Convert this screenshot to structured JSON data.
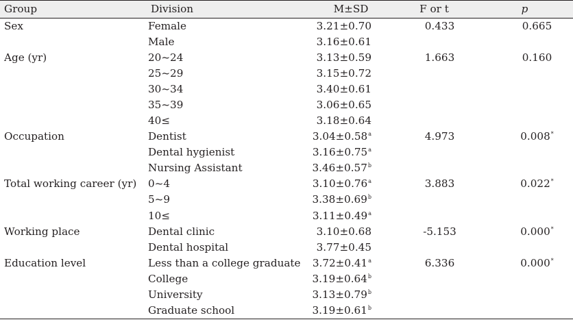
{
  "headers": {
    "group": "Group",
    "division": "Division",
    "msd": "M±SD",
    "ft": "F or t",
    "p": "p"
  },
  "rows": [
    {
      "group": "Sex",
      "division": "Female",
      "msd": "3.21±0.70",
      "sup": "",
      "ft": "0.433",
      "p": "0.665",
      "psup": ""
    },
    {
      "group": "",
      "division": "Male",
      "msd": "3.16±0.61",
      "sup": "",
      "ft": "",
      "p": "",
      "psup": ""
    },
    {
      "group": "Age (yr)",
      "division": "20~24",
      "msd": "3.13±0.59",
      "sup": "",
      "ft": "1.663",
      "p": "0.160",
      "psup": ""
    },
    {
      "group": "",
      "division": "25~29",
      "msd": "3.15±0.72",
      "sup": "",
      "ft": "",
      "p": "",
      "psup": ""
    },
    {
      "group": "",
      "division": "30~34",
      "msd": "3.40±0.61",
      "sup": "",
      "ft": "",
      "p": "",
      "psup": ""
    },
    {
      "group": "",
      "division": "35~39",
      "msd": "3.06±0.65",
      "sup": "",
      "ft": "",
      "p": "",
      "psup": ""
    },
    {
      "group": "",
      "division": "40≤",
      "msd": "3.18±0.64",
      "sup": "",
      "ft": "",
      "p": "",
      "psup": ""
    },
    {
      "group": "Occupation",
      "division": "Dentist",
      "msd": "3.04±0.58",
      "sup": "a",
      "ft": "4.973",
      "p": "0.008",
      "psup": "*"
    },
    {
      "group": "",
      "division": "Dental hygienist",
      "msd": "3.16±0.75",
      "sup": "a",
      "ft": "",
      "p": "",
      "psup": ""
    },
    {
      "group": "",
      "division": "Nursing Assistant",
      "msd": "3.46±0.57",
      "sup": "b",
      "ft": "",
      "p": "",
      "psup": ""
    },
    {
      "group": "Total working career (yr)",
      "division": "0~4",
      "msd": "3.10±0.76",
      "sup": "a",
      "ft": "3.883",
      "p": "0.022",
      "psup": "*"
    },
    {
      "group": "",
      "division": "5~9",
      "msd": "3.38±0.69",
      "sup": "b",
      "ft": "",
      "p": "",
      "psup": ""
    },
    {
      "group": "",
      "division": "10≤",
      "msd": "3.11±0.49",
      "sup": "a",
      "ft": "",
      "p": "",
      "psup": ""
    },
    {
      "group": "Working place",
      "division": "Dental clinic",
      "msd": "3.10±0.68",
      "sup": "",
      "ft": "-5.153",
      "p": "0.000",
      "psup": "*"
    },
    {
      "group": "",
      "division": "Dental hospital",
      "msd": "3.77±0.45",
      "sup": "",
      "ft": "",
      "p": "",
      "psup": ""
    },
    {
      "group": "Education level",
      "division": "Less than a college graduate",
      "msd": "3.72±0.41",
      "sup": "a",
      "ft": "6.336",
      "p": "0.000",
      "psup": "*"
    },
    {
      "group": "",
      "division": "College",
      "msd": "3.19±0.64",
      "sup": "b",
      "ft": "",
      "p": "",
      "psup": ""
    },
    {
      "group": "",
      "division": "University",
      "msd": "3.13±0.79",
      "sup": "b",
      "ft": "",
      "p": "",
      "psup": ""
    },
    {
      "group": "",
      "division": "Graduate school",
      "msd": "3.19±0.61",
      "sup": "b",
      "ft": "",
      "p": "",
      "psup": ""
    }
  ]
}
